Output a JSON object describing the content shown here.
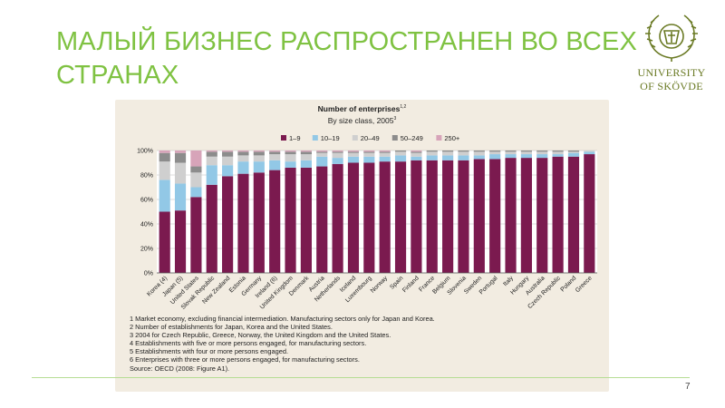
{
  "slide": {
    "title": "МАЛЫЙ БИЗНЕС РАСПРОСТРАНЕН ВО ВСЕХ СТРАНАХ",
    "page_number": "7",
    "accent_color": "#7fc242"
  },
  "logo": {
    "line1": "UNIVERSITY",
    "line2": "OF SKÖVDE",
    "icon": "crest-icon",
    "color": "#6a7a24"
  },
  "chart_data": {
    "type": "bar",
    "stacked": true,
    "title": "Number of enterprises",
    "title_superscript": "1,2",
    "subtitle": "By size class, 2005",
    "subtitle_superscript": "3",
    "categories": [
      "Korea (4)",
      "Japan (5)",
      "United States",
      "Slovak Republic",
      "New Zealand",
      "Estonia",
      "Germany",
      "Ireland (6)",
      "United Kingdom",
      "Denmark",
      "Austria",
      "Netherlands",
      "Iceland",
      "Luxembourg",
      "Norway",
      "Spain",
      "Finland",
      "France",
      "Belgium",
      "Slovenia",
      "Sweden",
      "Portugal",
      "Italy",
      "Hungary",
      "Australia",
      "Czech Republic",
      "Poland",
      "Greece"
    ],
    "series": [
      {
        "name": "1–9",
        "color": "#7b1a4f",
        "values": [
          50,
          51,
          62,
          72,
          79,
          81,
          82,
          84,
          86,
          86,
          87,
          89,
          90,
          90,
          91,
          91,
          92,
          92,
          92,
          92,
          93,
          93,
          94,
          94,
          94,
          95,
          95,
          97
        ]
      },
      {
        "name": "10–19",
        "color": "#92c8e6",
        "values": [
          26,
          22,
          8,
          16,
          9,
          10,
          9,
          8,
          5,
          6,
          8,
          5,
          5,
          5,
          4,
          5,
          3,
          4,
          4,
          4,
          3,
          4,
          3,
          3,
          3,
          2,
          3,
          2
        ]
      },
      {
        "name": "20–49",
        "color": "#cfcfcf",
        "values": [
          15,
          17,
          12,
          7,
          7,
          5,
          5,
          5,
          6,
          5,
          3,
          4,
          3,
          3,
          3,
          3,
          3,
          3,
          3,
          3,
          3,
          2,
          2,
          2,
          2,
          2,
          1,
          1
        ]
      },
      {
        "name": "50–249",
        "color": "#8c8c8c",
        "values": [
          7,
          8,
          5,
          4,
          4,
          3,
          3,
          2,
          2,
          2,
          1,
          1,
          1,
          1,
          1,
          1,
          1,
          1,
          1,
          1,
          1,
          1,
          1,
          1,
          1,
          1,
          1,
          0
        ]
      },
      {
        "name": "250+",
        "color": "#d7a4b9",
        "values": [
          2,
          2,
          13,
          1,
          1,
          1,
          1,
          1,
          1,
          1,
          1,
          1,
          1,
          1,
          1,
          0,
          1,
          0,
          0,
          0,
          0,
          0,
          0,
          0,
          0,
          0,
          0,
          0
        ]
      }
    ],
    "y_ticks": [
      "0%",
      "20%",
      "40%",
      "60%",
      "80%",
      "100%"
    ],
    "ylim": [
      0,
      100
    ],
    "xlabel": "",
    "ylabel": "",
    "legend_position": "top-center",
    "grid": true,
    "background_color": "#f2ece1",
    "notes": [
      "1  Market economy, excluding financial intermediation. Manufacturing sectors only for Japan and Korea.",
      "2  Number of establishments for Japan, Korea and the United States.",
      "3  2004 for Czech Republic, Greece, Norway, the United Kingdom and the United States.",
      "4  Establishments with five or more persons engaged, for manufacturing sectors.",
      "5  Establishments with four or more persons engaged.",
      "6  Enterprises with three or more persons engaged, for manufacturing sectors."
    ],
    "source": "Source: OECD (2008: Figure A1)."
  }
}
